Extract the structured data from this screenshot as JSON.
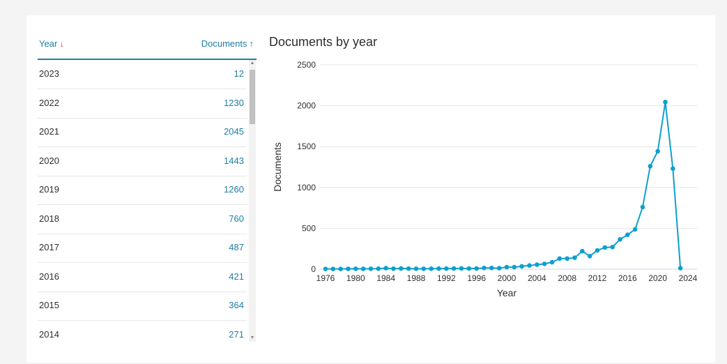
{
  "table": {
    "headers": {
      "year": "Year",
      "year_arrow": "↓",
      "documents": "Documents",
      "documents_arrow": "↑"
    },
    "rows": [
      {
        "year": "2023",
        "documents": "12"
      },
      {
        "year": "2022",
        "documents": "1230"
      },
      {
        "year": "2021",
        "documents": "2045"
      },
      {
        "year": "2020",
        "documents": "1443"
      },
      {
        "year": "2019",
        "documents": "1260"
      },
      {
        "year": "2018",
        "documents": "760"
      },
      {
        "year": "2017",
        "documents": "487"
      },
      {
        "year": "2016",
        "documents": "421"
      },
      {
        "year": "2015",
        "documents": "364"
      },
      {
        "year": "2014",
        "documents": "271"
      }
    ]
  },
  "chart_data": {
    "type": "line",
    "title": "Documents by year",
    "xlabel": "Year",
    "ylabel": "Documents",
    "xlim": [
      1976,
      2024
    ],
    "ylim": [
      0,
      2500
    ],
    "x_ticks": [
      1976,
      1980,
      1984,
      1988,
      1992,
      1996,
      2000,
      2004,
      2008,
      2012,
      2016,
      2020,
      2024
    ],
    "y_ticks": [
      0,
      500,
      1000,
      1500,
      2000,
      2500
    ],
    "grid": "horizontal",
    "color": "#0e9fd0",
    "series": [
      {
        "x": [
          1976,
          1977,
          1978,
          1979,
          1980,
          1981,
          1982,
          1983,
          1984,
          1985,
          1986,
          1987,
          1988,
          1989,
          1990,
          1991,
          1992,
          1993,
          1994,
          1995,
          1996,
          1997,
          1998,
          1999,
          2000,
          2001,
          2002,
          2003,
          2004,
          2005,
          2006,
          2007,
          2008,
          2009,
          2010,
          2011,
          2012,
          2013,
          2014,
          2015,
          2016,
          2017,
          2018,
          2019,
          2020,
          2021,
          2022,
          2023
        ],
        "values": [
          3,
          3,
          3,
          4,
          5,
          4,
          5,
          6,
          12,
          6,
          8,
          7,
          5,
          5,
          6,
          7,
          7,
          8,
          9,
          8,
          8,
          15,
          15,
          12,
          25,
          25,
          35,
          45,
          55,
          65,
          85,
          130,
          130,
          140,
          220,
          160,
          230,
          265,
          271,
          364,
          421,
          487,
          760,
          1260,
          1443,
          2045,
          1230,
          12
        ]
      }
    ]
  }
}
